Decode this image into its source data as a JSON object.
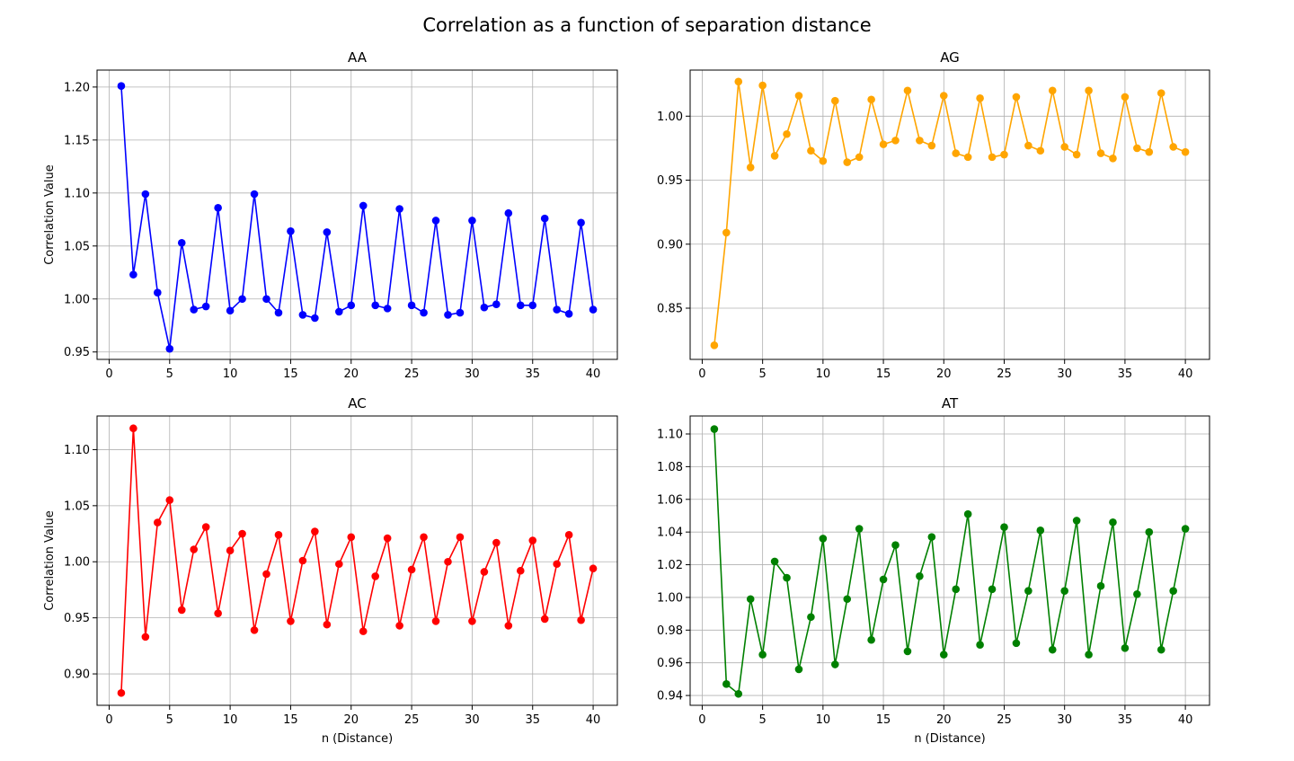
{
  "figure": {
    "title": "Correlation as a function of separation distance"
  },
  "chart_data": [
    {
      "type": "line",
      "title": "AA",
      "xlabel": "",
      "ylabel": "Correlation Value",
      "color": "#0000ff",
      "xlim": [
        -1,
        42
      ],
      "ylim": [
        0.943,
        1.216
      ],
      "xticks": [
        0,
        5,
        10,
        15,
        20,
        25,
        30,
        35,
        40
      ],
      "yticks": [
        0.95,
        1.0,
        1.05,
        1.1,
        1.15,
        1.2
      ],
      "ytick_labels": [
        "0.95",
        "1.00",
        "1.05",
        "1.10",
        "1.15",
        "1.20"
      ],
      "grid": true,
      "x": [
        1,
        2,
        3,
        4,
        5,
        6,
        7,
        8,
        9,
        10,
        11,
        12,
        13,
        14,
        15,
        16,
        17,
        18,
        19,
        20,
        21,
        22,
        23,
        24,
        25,
        26,
        27,
        28,
        29,
        30,
        31,
        32,
        33,
        34,
        35,
        36,
        37,
        38,
        39,
        40
      ],
      "values": [
        1.201,
        1.023,
        1.099,
        1.006,
        0.953,
        1.053,
        0.99,
        0.993,
        1.086,
        0.989,
        1.0,
        1.099,
        1.0,
        0.987,
        1.064,
        0.985,
        0.982,
        1.063,
        0.988,
        0.994,
        1.088,
        0.994,
        0.991,
        1.085,
        0.994,
        0.987,
        1.074,
        0.985,
        0.987,
        1.074,
        0.992,
        0.995,
        1.081,
        0.994,
        0.994,
        1.076,
        0.99,
        0.986,
        1.072,
        0.99
      ]
    },
    {
      "type": "line",
      "title": "AG",
      "xlabel": "",
      "ylabel": "",
      "color": "#ffa500",
      "xlim": [
        -1,
        42
      ],
      "ylim": [
        0.81,
        1.036
      ],
      "xticks": [
        0,
        5,
        10,
        15,
        20,
        25,
        30,
        35,
        40
      ],
      "yticks": [
        0.85,
        0.9,
        0.95,
        1.0
      ],
      "ytick_labels": [
        "0.85",
        "0.90",
        "0.95",
        "1.00"
      ],
      "grid": true,
      "x": [
        1,
        2,
        3,
        4,
        5,
        6,
        7,
        8,
        9,
        10,
        11,
        12,
        13,
        14,
        15,
        16,
        17,
        18,
        19,
        20,
        21,
        22,
        23,
        24,
        25,
        26,
        27,
        28,
        29,
        30,
        31,
        32,
        33,
        34,
        35,
        36,
        37,
        38,
        39,
        40
      ],
      "values": [
        0.821,
        0.909,
        1.027,
        0.96,
        1.024,
        0.969,
        0.986,
        1.016,
        0.973,
        0.965,
        1.012,
        0.964,
        0.968,
        1.013,
        0.978,
        0.981,
        1.02,
        0.981,
        0.977,
        1.016,
        0.971,
        0.968,
        1.014,
        0.968,
        0.97,
        1.015,
        0.977,
        0.973,
        1.02,
        0.976,
        0.97,
        1.02,
        0.971,
        0.967,
        1.015,
        0.975,
        0.972,
        1.018,
        0.976,
        0.972
      ]
    },
    {
      "type": "line",
      "title": "AC",
      "xlabel": "n (Distance)",
      "ylabel": "Correlation Value",
      "color": "#ff0000",
      "xlim": [
        -1,
        42
      ],
      "ylim": [
        0.872,
        1.13
      ],
      "xticks": [
        0,
        5,
        10,
        15,
        20,
        25,
        30,
        35,
        40
      ],
      "yticks": [
        0.9,
        0.95,
        1.0,
        1.05,
        1.1
      ],
      "ytick_labels": [
        "0.90",
        "0.95",
        "1.00",
        "1.05",
        "1.10"
      ],
      "grid": true,
      "x": [
        1,
        2,
        3,
        4,
        5,
        6,
        7,
        8,
        9,
        10,
        11,
        12,
        13,
        14,
        15,
        16,
        17,
        18,
        19,
        20,
        21,
        22,
        23,
        24,
        25,
        26,
        27,
        28,
        29,
        30,
        31,
        32,
        33,
        34,
        35,
        36,
        37,
        38,
        39,
        40
      ],
      "values": [
        0.883,
        1.119,
        0.933,
        1.035,
        1.055,
        0.957,
        1.011,
        1.031,
        0.954,
        1.01,
        1.025,
        0.939,
        0.989,
        1.024,
        0.947,
        1.001,
        1.027,
        0.944,
        0.998,
        1.022,
        0.938,
        0.987,
        1.021,
        0.943,
        0.993,
        1.022,
        0.947,
        1.0,
        1.022,
        0.947,
        0.991,
        1.017,
        0.943,
        0.992,
        1.019,
        0.949,
        0.998,
        1.024,
        0.948,
        0.994
      ]
    },
    {
      "type": "line",
      "title": "AT",
      "xlabel": "n (Distance)",
      "ylabel": "",
      "color": "#008000",
      "xlim": [
        -1,
        42
      ],
      "ylim": [
        0.934,
        1.111
      ],
      "xticks": [
        0,
        5,
        10,
        15,
        20,
        25,
        30,
        35,
        40
      ],
      "yticks": [
        0.94,
        0.96,
        0.98,
        1.0,
        1.02,
        1.04,
        1.06,
        1.08,
        1.1
      ],
      "ytick_labels": [
        "0.94",
        "0.96",
        "0.98",
        "1.00",
        "1.02",
        "1.04",
        "1.06",
        "1.08",
        "1.10"
      ],
      "grid": true,
      "x": [
        1,
        2,
        3,
        4,
        5,
        6,
        7,
        8,
        9,
        10,
        11,
        12,
        13,
        14,
        15,
        16,
        17,
        18,
        19,
        20,
        21,
        22,
        23,
        24,
        25,
        26,
        27,
        28,
        29,
        30,
        31,
        32,
        33,
        34,
        35,
        36,
        37,
        38,
        39,
        40
      ],
      "values": [
        1.103,
        0.947,
        0.941,
        0.999,
        0.965,
        1.022,
        1.012,
        0.956,
        0.988,
        1.036,
        0.959,
        0.999,
        1.042,
        0.974,
        1.011,
        1.032,
        0.967,
        1.013,
        1.037,
        0.965,
        1.005,
        1.051,
        0.971,
        1.005,
        1.043,
        0.972,
        1.004,
        1.041,
        0.968,
        1.004,
        1.047,
        0.965,
        1.007,
        1.046,
        0.969,
        1.002,
        1.04,
        0.968,
        1.004,
        1.042
      ]
    }
  ]
}
